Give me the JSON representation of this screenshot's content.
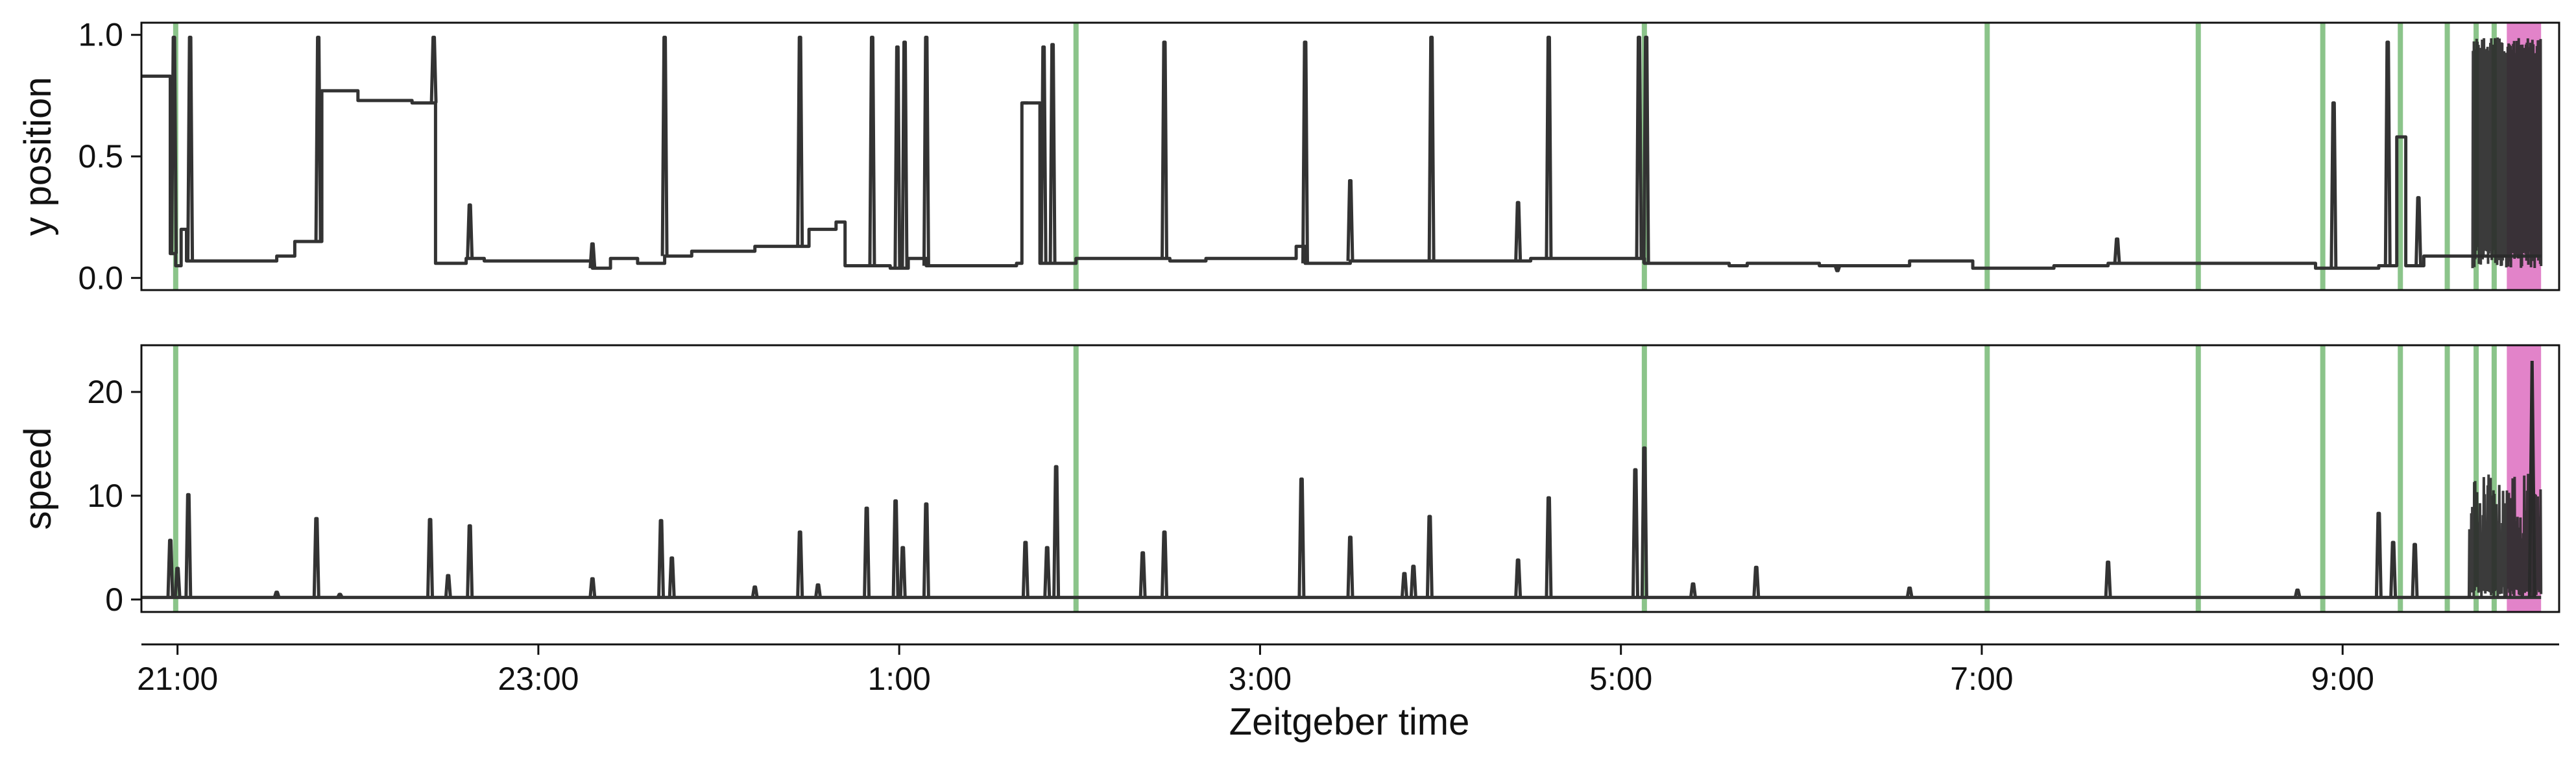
{
  "chart_data": {
    "type": "line",
    "x_unit": "Zeitgeber time (hours)",
    "x_range": [
      20.8,
      34.2
    ],
    "xlabel": "Zeitgeber time",
    "x_ticks": [
      {
        "value": 21,
        "label": "21:00"
      },
      {
        "value": 23,
        "label": "23:00"
      },
      {
        "value": 25,
        "label": "1:00"
      },
      {
        "value": 27,
        "label": "3:00"
      },
      {
        "value": 29,
        "label": "5:00"
      },
      {
        "value": 31,
        "label": "7:00"
      },
      {
        "value": 33,
        "label": "9:00"
      }
    ],
    "event_lines": [
      20.99,
      25.98,
      29.13,
      31.03,
      32.2,
      32.89,
      33.32,
      33.58,
      33.74,
      33.84
    ],
    "event_line_color": "#8bc48a",
    "highlight_band": {
      "start": 33.91,
      "end": 34.1,
      "color": "#e07cc6"
    },
    "line_color": "#333333",
    "panels": [
      {
        "name": "y position",
        "ylabel": "y position",
        "ylim": [
          -0.05,
          1.05
        ],
        "y_ticks": [
          {
            "value": 0.0,
            "label": "0.0"
          },
          {
            "value": 0.5,
            "label": "0.5"
          },
          {
            "value": 1.0,
            "label": "1.0"
          }
        ],
        "baseline_steps": [
          [
            20.8,
            0.83
          ],
          [
            20.96,
            0.1
          ],
          [
            20.99,
            0.05
          ],
          [
            21.02,
            0.2
          ],
          [
            21.05,
            0.07
          ],
          [
            21.55,
            0.09
          ],
          [
            21.65,
            0.15
          ],
          [
            21.8,
            0.77
          ],
          [
            22.0,
            0.73
          ],
          [
            22.3,
            0.72
          ],
          [
            22.43,
            0.06
          ],
          [
            22.6,
            0.08
          ],
          [
            22.7,
            0.07
          ],
          [
            23.3,
            0.04
          ],
          [
            23.4,
            0.08
          ],
          [
            23.55,
            0.06
          ],
          [
            23.7,
            0.09
          ],
          [
            23.85,
            0.11
          ],
          [
            24.2,
            0.13
          ],
          [
            24.5,
            0.2
          ],
          [
            24.65,
            0.23
          ],
          [
            24.7,
            0.05
          ],
          [
            24.95,
            0.04
          ],
          [
            25.05,
            0.08
          ],
          [
            25.15,
            0.05
          ],
          [
            25.45,
            0.05
          ],
          [
            25.65,
            0.06
          ],
          [
            25.68,
            0.72
          ],
          [
            25.78,
            0.06
          ],
          [
            25.98,
            0.08
          ],
          [
            26.5,
            0.07
          ],
          [
            26.7,
            0.08
          ],
          [
            27.2,
            0.13
          ],
          [
            27.25,
            0.06
          ],
          [
            27.5,
            0.07
          ],
          [
            27.95,
            0.07
          ],
          [
            28.5,
            0.08
          ],
          [
            29.13,
            0.06
          ],
          [
            29.6,
            0.05
          ],
          [
            29.7,
            0.06
          ],
          [
            30.1,
            0.05
          ],
          [
            30.6,
            0.07
          ],
          [
            30.95,
            0.04
          ],
          [
            31.4,
            0.05
          ],
          [
            31.7,
            0.06
          ],
          [
            32.2,
            0.06
          ],
          [
            32.85,
            0.04
          ],
          [
            33.1,
            0.04
          ],
          [
            33.2,
            0.05
          ],
          [
            33.3,
            0.58
          ],
          [
            33.35,
            0.05
          ],
          [
            33.45,
            0.09
          ],
          [
            33.62,
            0.09
          ],
          [
            33.7,
            0.09
          ],
          [
            34.1,
            0.09
          ]
        ],
        "spikes": [
          [
            20.98,
            0.99
          ],
          [
            21.07,
            0.99
          ],
          [
            21.78,
            0.99
          ],
          [
            22.42,
            0.99
          ],
          [
            22.62,
            0.3
          ],
          [
            23.3,
            0.14
          ],
          [
            23.7,
            0.99
          ],
          [
            24.45,
            0.99
          ],
          [
            24.85,
            0.99
          ],
          [
            24.99,
            0.95
          ],
          [
            25.03,
            0.97
          ],
          [
            25.15,
            0.99
          ],
          [
            25.7,
            0.72
          ],
          [
            25.8,
            0.95
          ],
          [
            25.85,
            0.96
          ],
          [
            26.47,
            0.97
          ],
          [
            27.25,
            0.97
          ],
          [
            27.5,
            0.4
          ],
          [
            27.95,
            0.99
          ],
          [
            28.43,
            0.31
          ],
          [
            28.6,
            0.99
          ],
          [
            29.1,
            0.99
          ],
          [
            29.14,
            0.99
          ],
          [
            30.2,
            0.03
          ],
          [
            31.75,
            0.16
          ],
          [
            32.95,
            0.72
          ],
          [
            33.25,
            0.97
          ],
          [
            33.42,
            0.33
          ]
        ],
        "dense_region": {
          "start": 33.72,
          "end": 34.1,
          "min": 0.04,
          "max": 0.99
        }
      },
      {
        "name": "speed",
        "ylabel": "speed",
        "ylim": [
          -1.2,
          24.5
        ],
        "y_ticks": [
          {
            "value": 0,
            "label": "0"
          },
          {
            "value": 10,
            "label": "10"
          },
          {
            "value": 20,
            "label": "20"
          }
        ],
        "baseline_steps": [
          [
            20.8,
            0.2
          ],
          [
            34.1,
            0.2
          ]
        ],
        "spikes": [
          [
            20.96,
            5.7
          ],
          [
            21.0,
            3.0
          ],
          [
            21.06,
            10.1
          ],
          [
            21.55,
            0.7
          ],
          [
            21.77,
            7.8
          ],
          [
            21.9,
            0.5
          ],
          [
            22.4,
            7.7
          ],
          [
            22.5,
            2.3
          ],
          [
            22.62,
            7.1
          ],
          [
            23.3,
            2.0
          ],
          [
            23.68,
            7.6
          ],
          [
            23.74,
            4.0
          ],
          [
            24.2,
            1.2
          ],
          [
            24.45,
            6.5
          ],
          [
            24.55,
            1.4
          ],
          [
            24.82,
            8.8
          ],
          [
            24.98,
            9.5
          ],
          [
            25.02,
            5.0
          ],
          [
            25.15,
            9.2
          ],
          [
            25.7,
            5.5
          ],
          [
            25.82,
            5.0
          ],
          [
            25.87,
            12.8
          ],
          [
            26.35,
            4.5
          ],
          [
            26.47,
            6.5
          ],
          [
            27.23,
            11.6
          ],
          [
            27.5,
            6.0
          ],
          [
            27.8,
            2.5
          ],
          [
            27.94,
            8.0
          ],
          [
            27.85,
            3.2
          ],
          [
            28.43,
            3.8
          ],
          [
            28.6,
            9.8
          ],
          [
            29.08,
            12.5
          ],
          [
            29.13,
            14.6
          ],
          [
            29.4,
            1.5
          ],
          [
            29.75,
            3.1
          ],
          [
            30.6,
            1.1
          ],
          [
            31.7,
            3.6
          ],
          [
            32.75,
            0.9
          ],
          [
            33.2,
            8.3
          ],
          [
            33.28,
            5.5
          ],
          [
            33.4,
            5.3
          ]
        ],
        "dense_region": {
          "start": 33.7,
          "end": 34.1,
          "min": 0.2,
          "max": 12.3
        },
        "dense_peak": [
          34.05,
          23.0
        ]
      }
    ]
  }
}
